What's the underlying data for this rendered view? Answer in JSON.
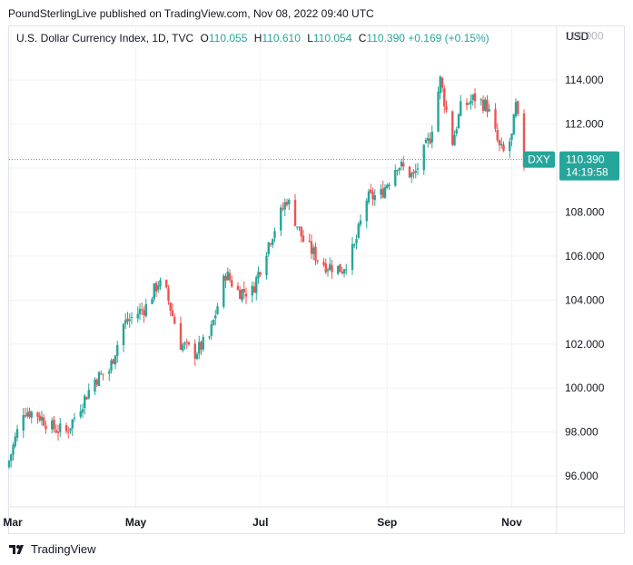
{
  "publisher_line": "PoundSterlingLive published on TradingView.com, Nov 08, 2022 09:40 UTC",
  "legend": {
    "symbol": "U.S. Dollar Currency Index, 1D, TVC",
    "o_label": "O",
    "o_value": "110.055",
    "h_label": "H",
    "h_value": "110.610",
    "l_label": "L",
    "l_value": "110.054",
    "c_label": "C",
    "c_value": "110.390",
    "change": "+0.169 (+0.15%)"
  },
  "currency": "USD",
  "footer_brand": "TradingView",
  "last_price": {
    "ticker": "DXY",
    "price": "110.390",
    "countdown": "14:19:58"
  },
  "colors": {
    "up": "#26a69a",
    "down": "#ef5350",
    "grid": "#f0f3fa",
    "axis_text": "#131722",
    "price_tag": "#26a69a"
  },
  "chart_data": {
    "type": "candlestick",
    "y_ticks": [
      "96.000",
      "98.000",
      "100.000",
      "102.000",
      "104.000",
      "106.000",
      "108.000",
      "110.000",
      "112.000",
      "114.000"
    ],
    "y_tick_values": [
      96,
      98,
      100,
      102,
      104,
      106,
      108,
      110,
      112,
      114
    ],
    "ylim": [
      94.6,
      116.4
    ],
    "x_labels": [
      "Mar",
      "May",
      "Jul",
      "Sep",
      "Nov"
    ],
    "x_label_dates": [
      "2022-03-01",
      "2022-05-01",
      "2022-07-01",
      "2022-09-01",
      "2022-11-01"
    ],
    "grid": true,
    "last_price": 110.39,
    "x_range": [
      "2022-02-28",
      "2022-11-23"
    ],
    "anchors": [
      [
        "2022-02-28",
        96.7
      ],
      [
        "2022-03-07",
        99.0
      ],
      [
        "2022-03-14",
        98.8
      ],
      [
        "2022-03-21",
        98.2
      ],
      [
        "2022-03-28",
        98.0
      ],
      [
        "2022-04-04",
        99.2
      ],
      [
        "2022-04-11",
        100.4
      ],
      [
        "2022-04-18",
        100.8
      ],
      [
        "2022-04-25",
        102.9
      ],
      [
        "2022-04-29",
        103.2
      ],
      [
        "2022-05-06",
        103.7
      ],
      [
        "2022-05-12",
        104.8
      ],
      [
        "2022-05-16",
        104.3
      ],
      [
        "2022-05-23",
        102.0
      ],
      [
        "2022-05-30",
        101.6
      ],
      [
        "2022-06-06",
        102.3
      ],
      [
        "2022-06-14",
        105.2
      ],
      [
        "2022-06-20",
        104.4
      ],
      [
        "2022-06-27",
        104.4
      ],
      [
        "2022-07-05",
        106.6
      ],
      [
        "2022-07-14",
        108.6
      ],
      [
        "2022-07-22",
        106.7
      ],
      [
        "2022-07-29",
        105.9
      ],
      [
        "2022-08-02",
        105.6
      ],
      [
        "2022-08-10",
        105.4
      ],
      [
        "2022-08-16",
        106.4
      ],
      [
        "2022-08-22",
        108.6
      ],
      [
        "2022-08-29",
        108.8
      ],
      [
        "2022-09-06",
        110.2
      ],
      [
        "2022-09-14",
        109.6
      ],
      [
        "2022-09-22",
        111.4
      ],
      [
        "2022-09-27",
        114.0
      ],
      [
        "2022-10-03",
        111.2
      ],
      [
        "2022-10-07",
        112.7
      ],
      [
        "2022-10-14",
        113.2
      ],
      [
        "2022-10-20",
        112.8
      ],
      [
        "2022-10-26",
        110.9
      ],
      [
        "2022-10-28",
        110.7
      ],
      [
        "2022-11-01",
        111.4
      ],
      [
        "2022-11-03",
        112.8
      ],
      [
        "2022-11-07",
        110.2
      ],
      [
        "2022-11-08",
        110.39
      ]
    ]
  }
}
